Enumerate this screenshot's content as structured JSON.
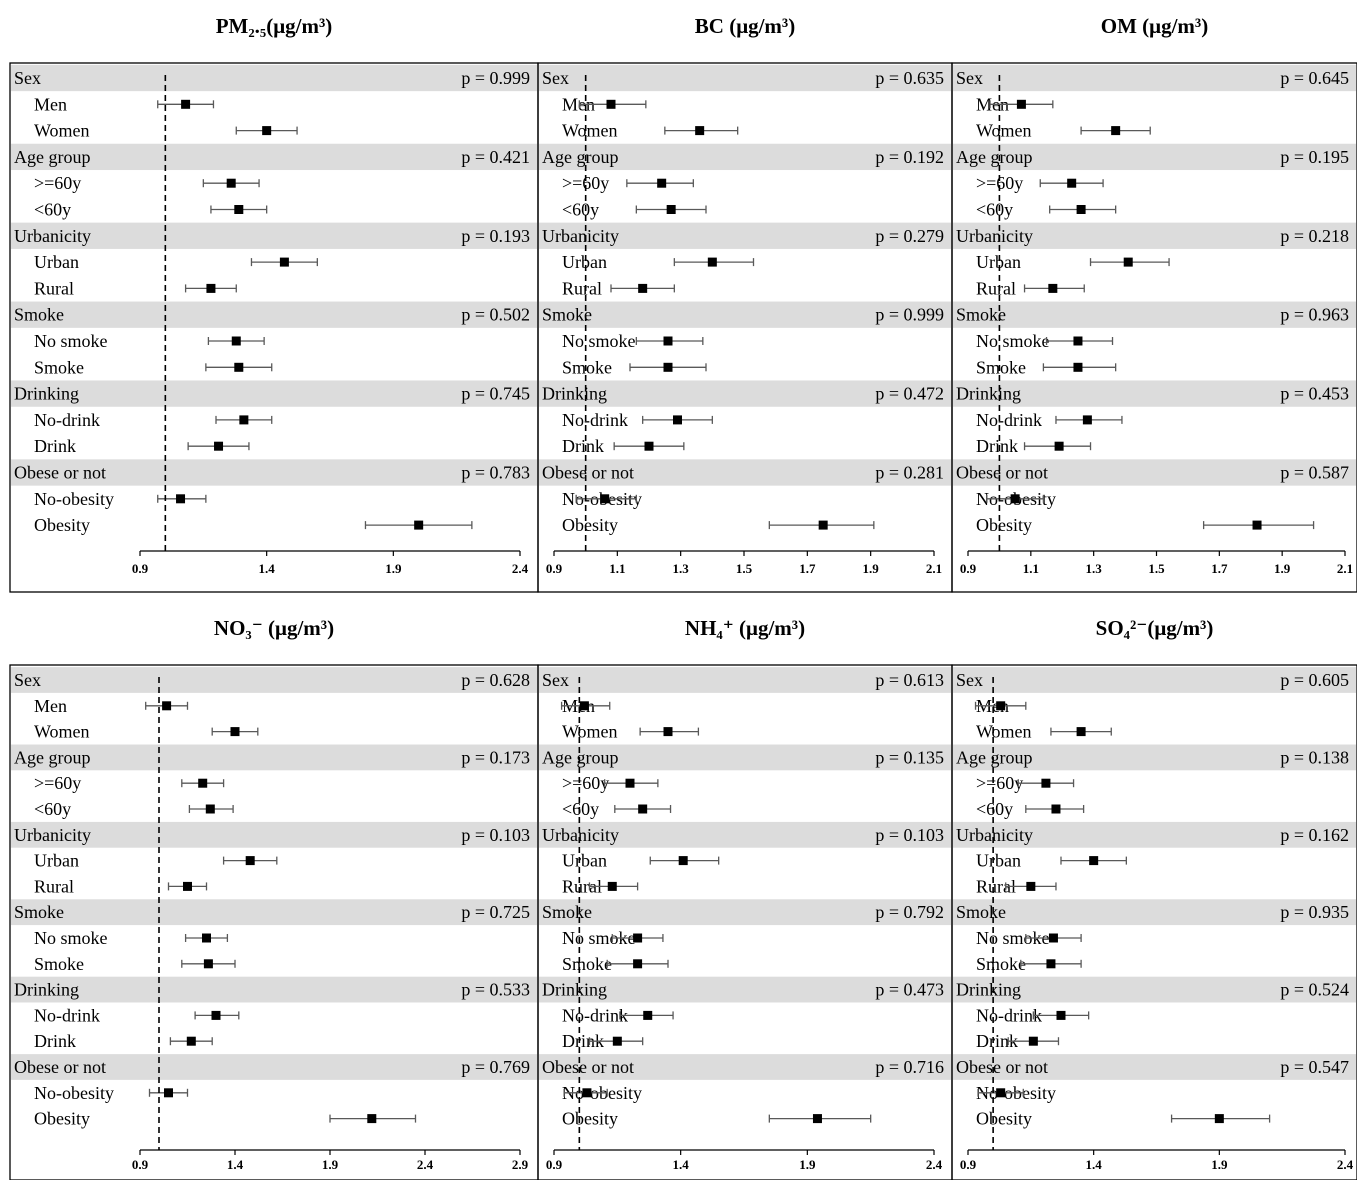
{
  "colors": {
    "group_band": "#dcdcdc",
    "marker": "#000000",
    "ci_line": "#595959",
    "axis": "#000000",
    "reference_line": "#000000",
    "background": "#ffffff"
  },
  "chart_data": [
    {
      "type": "forest",
      "title": "PM₂.₅(μg/m³)",
      "xlim": [
        0.9,
        2.4
      ],
      "xticks": [
        "0.9",
        "1.4",
        "1.9",
        "2.4"
      ],
      "reference_line": 1.0,
      "groups": [
        {
          "label": "Sex",
          "p_value": "p = 0.999",
          "rows": [
            {
              "label": "Men",
              "est": 1.08,
              "lo": 0.97,
              "hi": 1.19
            },
            {
              "label": "Women",
              "est": 1.4,
              "lo": 1.28,
              "hi": 1.52
            }
          ]
        },
        {
          "label": "Age group",
          "p_value": "p = 0.421",
          "rows": [
            {
              "label": ">=60y",
              "est": 1.26,
              "lo": 1.15,
              "hi": 1.37
            },
            {
              "label": "<60y",
              "est": 1.29,
              "lo": 1.18,
              "hi": 1.4
            }
          ]
        },
        {
          "label": "Urbanicity",
          "p_value": "p = 0.193",
          "rows": [
            {
              "label": "Urban",
              "est": 1.47,
              "lo": 1.34,
              "hi": 1.6
            },
            {
              "label": "Rural",
              "est": 1.18,
              "lo": 1.08,
              "hi": 1.28
            }
          ]
        },
        {
          "label": "Smoke",
          "p_value": "p = 0.502",
          "rows": [
            {
              "label": "No smoke",
              "est": 1.28,
              "lo": 1.17,
              "hi": 1.39
            },
            {
              "label": "Smoke",
              "est": 1.29,
              "lo": 1.16,
              "hi": 1.42
            }
          ]
        },
        {
          "label": "Drinking",
          "p_value": "p = 0.745",
          "rows": [
            {
              "label": "No-drink",
              "est": 1.31,
              "lo": 1.2,
              "hi": 1.42
            },
            {
              "label": "Drink",
              "est": 1.21,
              "lo": 1.09,
              "hi": 1.33
            }
          ]
        },
        {
          "label": "Obese or not",
          "p_value": "p = 0.783",
          "rows": [
            {
              "label": "No-obesity",
              "est": 1.06,
              "lo": 0.97,
              "hi": 1.16
            },
            {
              "label": "Obesity",
              "est": 2.0,
              "lo": 1.79,
              "hi": 2.21
            }
          ]
        }
      ]
    },
    {
      "type": "forest",
      "title": "BC (μg/m³)",
      "xlim": [
        0.9,
        2.1
      ],
      "xticks": [
        "0.9",
        "1.1",
        "1.3",
        "1.5",
        "1.7",
        "1.9",
        "2.1"
      ],
      "reference_line": 1.0,
      "groups": [
        {
          "label": "Sex",
          "p_value": "p = 0.635",
          "rows": [
            {
              "label": "Men",
              "est": 1.08,
              "lo": 0.98,
              "hi": 1.19
            },
            {
              "label": "Women",
              "est": 1.36,
              "lo": 1.25,
              "hi": 1.48
            }
          ]
        },
        {
          "label": "Age group",
          "p_value": "p = 0.192",
          "rows": [
            {
              "label": ">=60y",
              "est": 1.24,
              "lo": 1.13,
              "hi": 1.34
            },
            {
              "label": "<60y",
              "est": 1.27,
              "lo": 1.16,
              "hi": 1.38
            }
          ]
        },
        {
          "label": "Urbanicity",
          "p_value": "p = 0.279",
          "rows": [
            {
              "label": "Urban",
              "est": 1.4,
              "lo": 1.28,
              "hi": 1.53
            },
            {
              "label": "Rural",
              "est": 1.18,
              "lo": 1.08,
              "hi": 1.28
            }
          ]
        },
        {
          "label": "Smoke",
          "p_value": "p = 0.999",
          "rows": [
            {
              "label": "No smoke",
              "est": 1.26,
              "lo": 1.16,
              "hi": 1.37
            },
            {
              "label": "Smoke",
              "est": 1.26,
              "lo": 1.14,
              "hi": 1.38
            }
          ]
        },
        {
          "label": "Drinking",
          "p_value": "p = 0.472",
          "rows": [
            {
              "label": "No-drink",
              "est": 1.29,
              "lo": 1.18,
              "hi": 1.4
            },
            {
              "label": "Drink",
              "est": 1.2,
              "lo": 1.09,
              "hi": 1.31
            }
          ]
        },
        {
          "label": "Obese or not",
          "p_value": "p = 0.281",
          "rows": [
            {
              "label": "No-obesity",
              "est": 1.06,
              "lo": 0.97,
              "hi": 1.16
            },
            {
              "label": "Obesity",
              "est": 1.75,
              "lo": 1.58,
              "hi": 1.91
            }
          ]
        }
      ]
    },
    {
      "type": "forest",
      "title": "OM (μg/m³)",
      "xlim": [
        0.9,
        2.1
      ],
      "xticks": [
        "0.9",
        "1.1",
        "1.3",
        "1.5",
        "1.7",
        "1.9",
        "2.1"
      ],
      "reference_line": 1.0,
      "groups": [
        {
          "label": "Sex",
          "p_value": "p = 0.645",
          "rows": [
            {
              "label": "Men",
              "est": 1.07,
              "lo": 0.97,
              "hi": 1.17
            },
            {
              "label": "Women",
              "est": 1.37,
              "lo": 1.26,
              "hi": 1.48
            }
          ]
        },
        {
          "label": "Age group",
          "p_value": "p = 0.195",
          "rows": [
            {
              "label": ">=60y",
              "est": 1.23,
              "lo": 1.13,
              "hi": 1.33
            },
            {
              "label": "<60y",
              "est": 1.26,
              "lo": 1.16,
              "hi": 1.37
            }
          ]
        },
        {
          "label": "Urbanicity",
          "p_value": "p = 0.218",
          "rows": [
            {
              "label": "Urban",
              "est": 1.41,
              "lo": 1.29,
              "hi": 1.54
            },
            {
              "label": "Rural",
              "est": 1.17,
              "lo": 1.08,
              "hi": 1.27
            }
          ]
        },
        {
          "label": "Smoke",
          "p_value": "p = 0.963",
          "rows": [
            {
              "label": "No smoke",
              "est": 1.25,
              "lo": 1.15,
              "hi": 1.36
            },
            {
              "label": "Smoke",
              "est": 1.25,
              "lo": 1.14,
              "hi": 1.37
            }
          ]
        },
        {
          "label": "Drinking",
          "p_value": "p = 0.453",
          "rows": [
            {
              "label": "No-drink",
              "est": 1.28,
              "lo": 1.18,
              "hi": 1.39
            },
            {
              "label": "Drink",
              "est": 1.19,
              "lo": 1.08,
              "hi": 1.29
            }
          ]
        },
        {
          "label": "Obese or not",
          "p_value": "p = 0.587",
          "rows": [
            {
              "label": "No-obesity",
              "est": 1.05,
              "lo": 0.96,
              "hi": 1.14
            },
            {
              "label": "Obesity",
              "est": 1.82,
              "lo": 1.65,
              "hi": 2.0
            }
          ]
        }
      ]
    },
    {
      "type": "forest",
      "title": "NO₃⁻ (μg/m³)",
      "xlim": [
        0.9,
        2.9
      ],
      "xticks": [
        "0.9",
        "1.4",
        "1.9",
        "2.4",
        "2.9"
      ],
      "reference_line": 1.0,
      "groups": [
        {
          "label": "Sex",
          "p_value": "p = 0.628",
          "rows": [
            {
              "label": "Men",
              "est": 1.04,
              "lo": 0.93,
              "hi": 1.15
            },
            {
              "label": "Women",
              "est": 1.4,
              "lo": 1.28,
              "hi": 1.52
            }
          ]
        },
        {
          "label": "Age group",
          "p_value": "p = 0.173",
          "rows": [
            {
              "label": ">=60y",
              "est": 1.23,
              "lo": 1.12,
              "hi": 1.34
            },
            {
              "label": "<60y",
              "est": 1.27,
              "lo": 1.16,
              "hi": 1.39
            }
          ]
        },
        {
          "label": "Urbanicity",
          "p_value": "p = 0.103",
          "rows": [
            {
              "label": "Urban",
              "est": 1.48,
              "lo": 1.34,
              "hi": 1.62
            },
            {
              "label": "Rural",
              "est": 1.15,
              "lo": 1.05,
              "hi": 1.25
            }
          ]
        },
        {
          "label": "Smoke",
          "p_value": "p = 0.725",
          "rows": [
            {
              "label": "No smoke",
              "est": 1.25,
              "lo": 1.14,
              "hi": 1.36
            },
            {
              "label": "Smoke",
              "est": 1.26,
              "lo": 1.12,
              "hi": 1.4
            }
          ]
        },
        {
          "label": "Drinking",
          "p_value": "p = 0.533",
          "rows": [
            {
              "label": "No-drink",
              "est": 1.3,
              "lo": 1.19,
              "hi": 1.42
            },
            {
              "label": "Drink",
              "est": 1.17,
              "lo": 1.06,
              "hi": 1.28
            }
          ]
        },
        {
          "label": "Obese or not",
          "p_value": "p = 0.769",
          "rows": [
            {
              "label": "No-obesity",
              "est": 1.05,
              "lo": 0.95,
              "hi": 1.15
            },
            {
              "label": "Obesity",
              "est": 2.12,
              "lo": 1.9,
              "hi": 2.35
            }
          ]
        }
      ]
    },
    {
      "type": "forest",
      "title": "NH₄⁺ (μg/m³)",
      "xlim": [
        0.9,
        2.4
      ],
      "xticks": [
        "0.9",
        "1.4",
        "1.9",
        "2.4"
      ],
      "reference_line": 1.0,
      "groups": [
        {
          "label": "Sex",
          "p_value": "p = 0.613",
          "rows": [
            {
              "label": "Men",
              "est": 1.02,
              "lo": 0.93,
              "hi": 1.12
            },
            {
              "label": "Women",
              "est": 1.35,
              "lo": 1.24,
              "hi": 1.47
            }
          ]
        },
        {
          "label": "Age group",
          "p_value": "p = 0.135",
          "rows": [
            {
              "label": ">=60y",
              "est": 1.2,
              "lo": 1.1,
              "hi": 1.31
            },
            {
              "label": "<60y",
              "est": 1.25,
              "lo": 1.14,
              "hi": 1.36
            }
          ]
        },
        {
          "label": "Urbanicity",
          "p_value": "p = 0.103",
          "rows": [
            {
              "label": "Urban",
              "est": 1.41,
              "lo": 1.28,
              "hi": 1.55
            },
            {
              "label": "Rural",
              "est": 1.13,
              "lo": 1.04,
              "hi": 1.23
            }
          ]
        },
        {
          "label": "Smoke",
          "p_value": "p = 0.792",
          "rows": [
            {
              "label": "No smoke",
              "est": 1.23,
              "lo": 1.13,
              "hi": 1.33
            },
            {
              "label": "Smoke",
              "est": 1.23,
              "lo": 1.11,
              "hi": 1.35
            }
          ]
        },
        {
          "label": "Drinking",
          "p_value": "p = 0.473",
          "rows": [
            {
              "label": "No-drink",
              "est": 1.27,
              "lo": 1.16,
              "hi": 1.37
            },
            {
              "label": "Drink",
              "est": 1.15,
              "lo": 1.04,
              "hi": 1.25
            }
          ]
        },
        {
          "label": "Obese or not",
          "p_value": "p = 0.716",
          "rows": [
            {
              "label": "No-obesity",
              "est": 1.03,
              "lo": 0.94,
              "hi": 1.11
            },
            {
              "label": "Obesity",
              "est": 1.94,
              "lo": 1.75,
              "hi": 2.15
            }
          ]
        }
      ]
    },
    {
      "type": "forest",
      "title": "SO₄²⁻(μg/m³)",
      "xlim": [
        0.9,
        2.4
      ],
      "xticks": [
        "0.9",
        "1.4",
        "1.9",
        "2.4"
      ],
      "reference_line": 1.0,
      "groups": [
        {
          "label": "Sex",
          "p_value": "p = 0.605",
          "rows": [
            {
              "label": "Men",
              "est": 1.03,
              "lo": 0.93,
              "hi": 1.13
            },
            {
              "label": "Women",
              "est": 1.35,
              "lo": 1.23,
              "hi": 1.47
            }
          ]
        },
        {
          "label": "Age group",
          "p_value": "p = 0.138",
          "rows": [
            {
              "label": ">=60y",
              "est": 1.21,
              "lo": 1.1,
              "hi": 1.32
            },
            {
              "label": "<60y",
              "est": 1.25,
              "lo": 1.13,
              "hi": 1.36
            }
          ]
        },
        {
          "label": "Urbanicity",
          "p_value": "p = 0.162",
          "rows": [
            {
              "label": "Urban",
              "est": 1.4,
              "lo": 1.27,
              "hi": 1.53
            },
            {
              "label": "Rural",
              "est": 1.15,
              "lo": 1.05,
              "hi": 1.25
            }
          ]
        },
        {
          "label": "Smoke",
          "p_value": "p = 0.935",
          "rows": [
            {
              "label": "No smoke",
              "est": 1.24,
              "lo": 1.13,
              "hi": 1.35
            },
            {
              "label": "Smoke",
              "est": 1.23,
              "lo": 1.11,
              "hi": 1.35
            }
          ]
        },
        {
          "label": "Drinking",
          "p_value": "p = 0.524",
          "rows": [
            {
              "label": "No-drink",
              "est": 1.27,
              "lo": 1.16,
              "hi": 1.38
            },
            {
              "label": "Drink",
              "est": 1.16,
              "lo": 1.06,
              "hi": 1.26
            }
          ]
        },
        {
          "label": "Obese or not",
          "p_value": "p = 0.547",
          "rows": [
            {
              "label": "No-obesity",
              "est": 1.03,
              "lo": 0.94,
              "hi": 1.12
            },
            {
              "label": "Obesity",
              "est": 1.9,
              "lo": 1.71,
              "hi": 2.1
            }
          ]
        }
      ]
    }
  ]
}
